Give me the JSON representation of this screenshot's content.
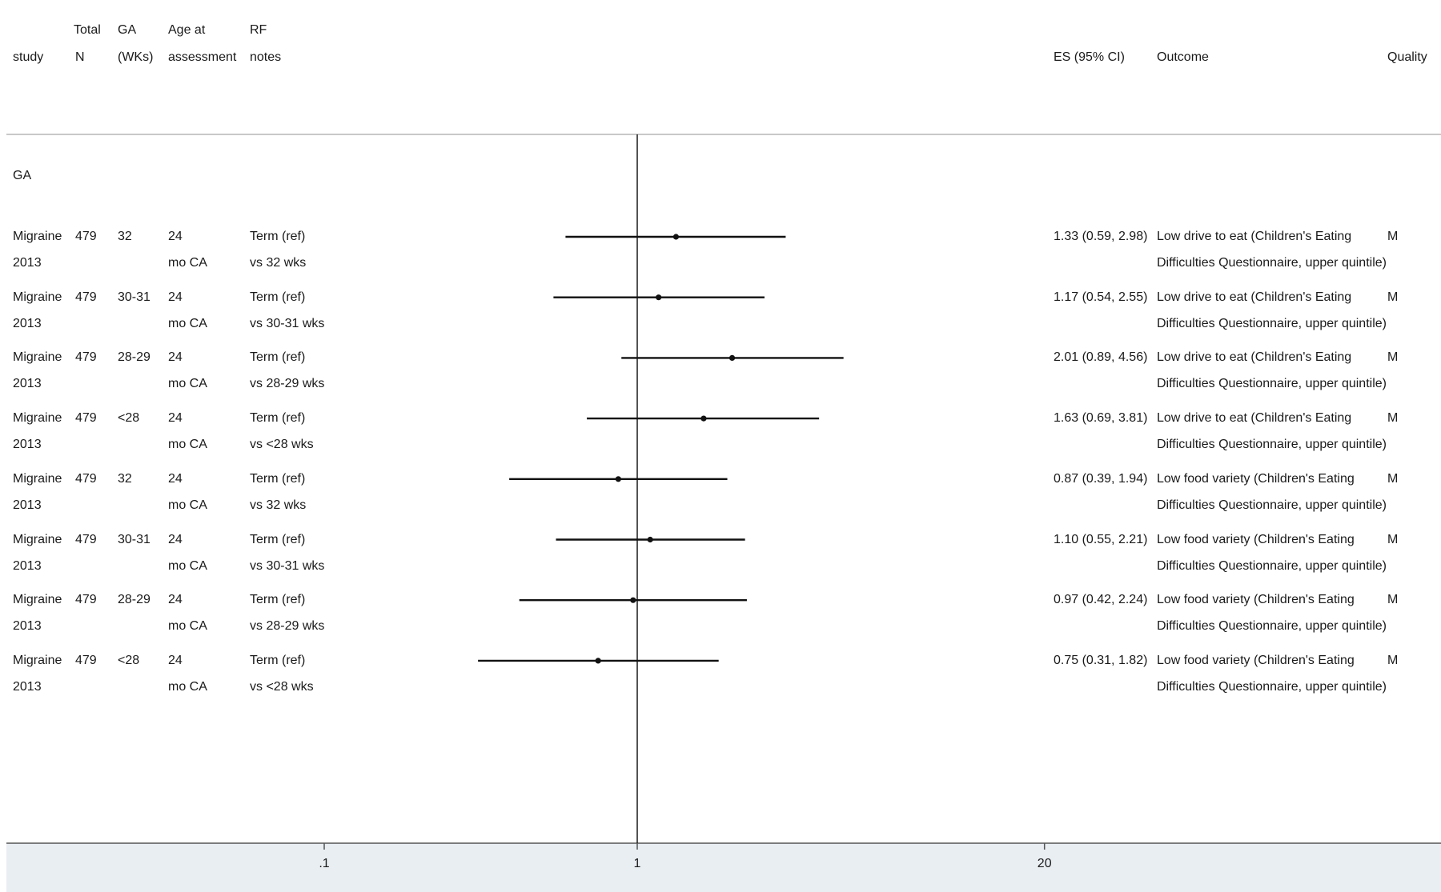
{
  "header": {
    "study": "study",
    "total_n_1": "Total",
    "total_n_2": "N",
    "ga_1": "GA",
    "ga_2": "(WKs)",
    "age_1": "Age at",
    "age_2": "assessment",
    "rf_1": "RF",
    "rf_2": "notes",
    "es": "ES (95% CI)",
    "outcome": "Outcome",
    "quality": "Quality"
  },
  "subgroup_label": "GA",
  "rows": [
    {
      "study_1": "Migraine",
      "study_2": "2013",
      "n": "479",
      "ga": "32",
      "age_1": "24",
      "age_2": "mo CA",
      "rf_1": "Term (ref)",
      "rf_2": "vs 32 wks",
      "es_text": "1.33 (0.59, 2.98)",
      "outcome_1": "Low drive to eat (Children's Eating",
      "outcome_2": "Difficulties Questionnaire, upper quintile)",
      "quality": "M"
    },
    {
      "study_1": "Migraine",
      "study_2": "2013",
      "n": "479",
      "ga": "30-31",
      "age_1": "24",
      "age_2": "mo CA",
      "rf_1": "Term (ref)",
      "rf_2": "vs 30-31 wks",
      "es_text": "1.17 (0.54, 2.55)",
      "outcome_1": "Low drive to eat (Children's Eating",
      "outcome_2": "Difficulties Questionnaire, upper quintile)",
      "quality": "M"
    },
    {
      "study_1": "Migraine",
      "study_2": "2013",
      "n": "479",
      "ga": "28-29",
      "age_1": "24",
      "age_2": "mo CA",
      "rf_1": "Term (ref)",
      "rf_2": "vs 28-29 wks",
      "es_text": "2.01 (0.89, 4.56)",
      "outcome_1": "Low drive to eat (Children's Eating",
      "outcome_2": "Difficulties Questionnaire, upper quintile)",
      "quality": "M"
    },
    {
      "study_1": "Migraine",
      "study_2": "2013",
      "n": "479",
      "ga": "<28",
      "age_1": "24",
      "age_2": "mo CA",
      "rf_1": "Term (ref)",
      "rf_2": "vs <28 wks",
      "es_text": "1.63 (0.69, 3.81)",
      "outcome_1": "Low drive to eat (Children's Eating",
      "outcome_2": "Difficulties Questionnaire, upper quintile)",
      "quality": "M"
    },
    {
      "study_1": "Migraine",
      "study_2": "2013",
      "n": "479",
      "ga": "32",
      "age_1": "24",
      "age_2": "mo CA",
      "rf_1": "Term (ref)",
      "rf_2": "vs 32 wks",
      "es_text": "0.87 (0.39, 1.94)",
      "outcome_1": "Low food variety (Children's Eating",
      "outcome_2": "Difficulties Questionnaire, upper quintile)",
      "quality": "M"
    },
    {
      "study_1": "Migraine",
      "study_2": "2013",
      "n": "479",
      "ga": "30-31",
      "age_1": "24",
      "age_2": "mo CA",
      "rf_1": "Term (ref)",
      "rf_2": "vs 30-31 wks",
      "es_text": "1.10 (0.55, 2.21)",
      "outcome_1": "Low food variety (Children's Eating",
      "outcome_2": "Difficulties Questionnaire, upper quintile)",
      "quality": "M"
    },
    {
      "study_1": "Migraine",
      "study_2": "2013",
      "n": "479",
      "ga": "28-29",
      "age_1": "24",
      "age_2": "mo CA",
      "rf_1": "Term (ref)",
      "rf_2": "vs 28-29 wks",
      "es_text": "0.97 (0.42, 2.24)",
      "outcome_1": "Low food variety (Children's Eating",
      "outcome_2": "Difficulties Questionnaire, upper quintile)",
      "quality": "M"
    },
    {
      "study_1": "Migraine",
      "study_2": "2013",
      "n": "479",
      "ga": "<28",
      "age_1": "24",
      "age_2": "mo CA",
      "rf_1": "Term (ref)",
      "rf_2": "vs <28 wks",
      "es_text": "0.75 (0.31, 1.82)",
      "outcome_1": "Low food variety (Children's Eating",
      "outcome_2": "Difficulties Questionnaire, upper quintile)",
      "quality": "M"
    }
  ],
  "chart_data": {
    "type": "forest",
    "x_scale": "log",
    "xlim": [
      0.05,
      40
    ],
    "x_ticks": [
      0.1,
      1,
      20
    ],
    "x_tick_labels": [
      ".1",
      "1",
      "20"
    ],
    "reference_line": 1,
    "estimates": [
      {
        "es": 1.33,
        "lo": 0.59,
        "hi": 2.98
      },
      {
        "es": 1.17,
        "lo": 0.54,
        "hi": 2.55
      },
      {
        "es": 2.01,
        "lo": 0.89,
        "hi": 4.56
      },
      {
        "es": 1.63,
        "lo": 0.69,
        "hi": 3.81
      },
      {
        "es": 0.87,
        "lo": 0.39,
        "hi": 1.94
      },
      {
        "es": 1.1,
        "lo": 0.55,
        "hi": 2.21
      },
      {
        "es": 0.97,
        "lo": 0.42,
        "hi": 2.24
      },
      {
        "es": 0.75,
        "lo": 0.31,
        "hi": 1.82
      }
    ]
  }
}
